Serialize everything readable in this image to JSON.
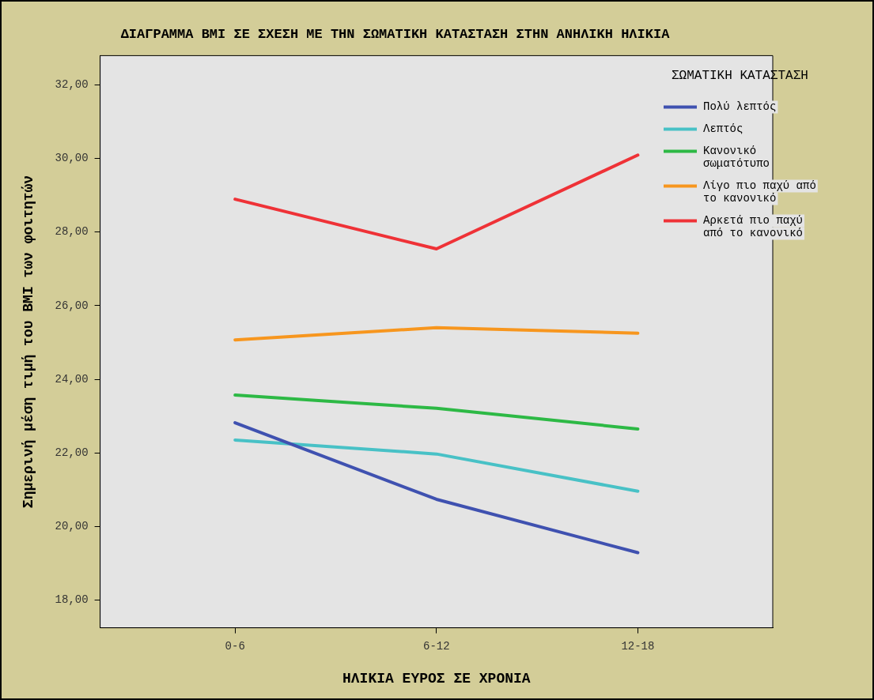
{
  "chart_data": {
    "type": "line",
    "title": "ΔΙΑΓΡΑΜΜΑ BMI ΣΕ ΣΧΕΣΗ ΜΕ ΤΗΝ ΣΩΜΑΤΙΚΗ ΚΑΤΑΣΤΑΣΗ ΣΤΗΝ ΑΝΗΛΙΚΗ ΗΛΙΚΙΑ",
    "xlabel": "ΗΛΙΚΙΑ ΕΥΡΟΣ ΣΕ ΧΡΟΝΙΑ",
    "ylabel": "Σημερινή μέση τιμή του BMI των φοιτητών",
    "legend_title": "ΣΩΜΑΤΙΚΗ ΚΑΤΑΣΤΑΣΗ",
    "categories": [
      "0-6",
      "6-12",
      "12-18"
    ],
    "series": [
      {
        "name": "Πολύ λεπτός",
        "color": "#3f51b0",
        "values": [
          22.82,
          20.74,
          19.29
        ]
      },
      {
        "name": "Λεπτός",
        "color": "#48c1c6",
        "values": [
          22.35,
          21.97,
          20.96
        ]
      },
      {
        "name": "Κανονικό σωματότυπο",
        "color": "#2db945",
        "values": [
          23.57,
          23.21,
          22.65
        ]
      },
      {
        "name": "Λίγο πιο παχύ από το κανονικό",
        "color": "#f7961e",
        "values": [
          25.07,
          25.4,
          25.25
        ]
      },
      {
        "name": "Αρκετά πιο παχύ από το κανονικό",
        "color": "#ef3237",
        "values": [
          28.89,
          27.54,
          30.09
        ]
      }
    ],
    "ylim": [
      17.25,
      32.79
    ],
    "yticks": [
      {
        "value": 18,
        "label": "18,00"
      },
      {
        "value": 20,
        "label": "20,00"
      },
      {
        "value": 22,
        "label": "22,00"
      },
      {
        "value": 24,
        "label": "24,00"
      },
      {
        "value": 26,
        "label": "26,00"
      },
      {
        "value": 28,
        "label": "28,00"
      },
      {
        "value": 30,
        "label": "30,00"
      },
      {
        "value": 32,
        "label": "32,00"
      }
    ],
    "grid": false,
    "legend": "top right",
    "marker": "none",
    "line_style": "solid"
  }
}
